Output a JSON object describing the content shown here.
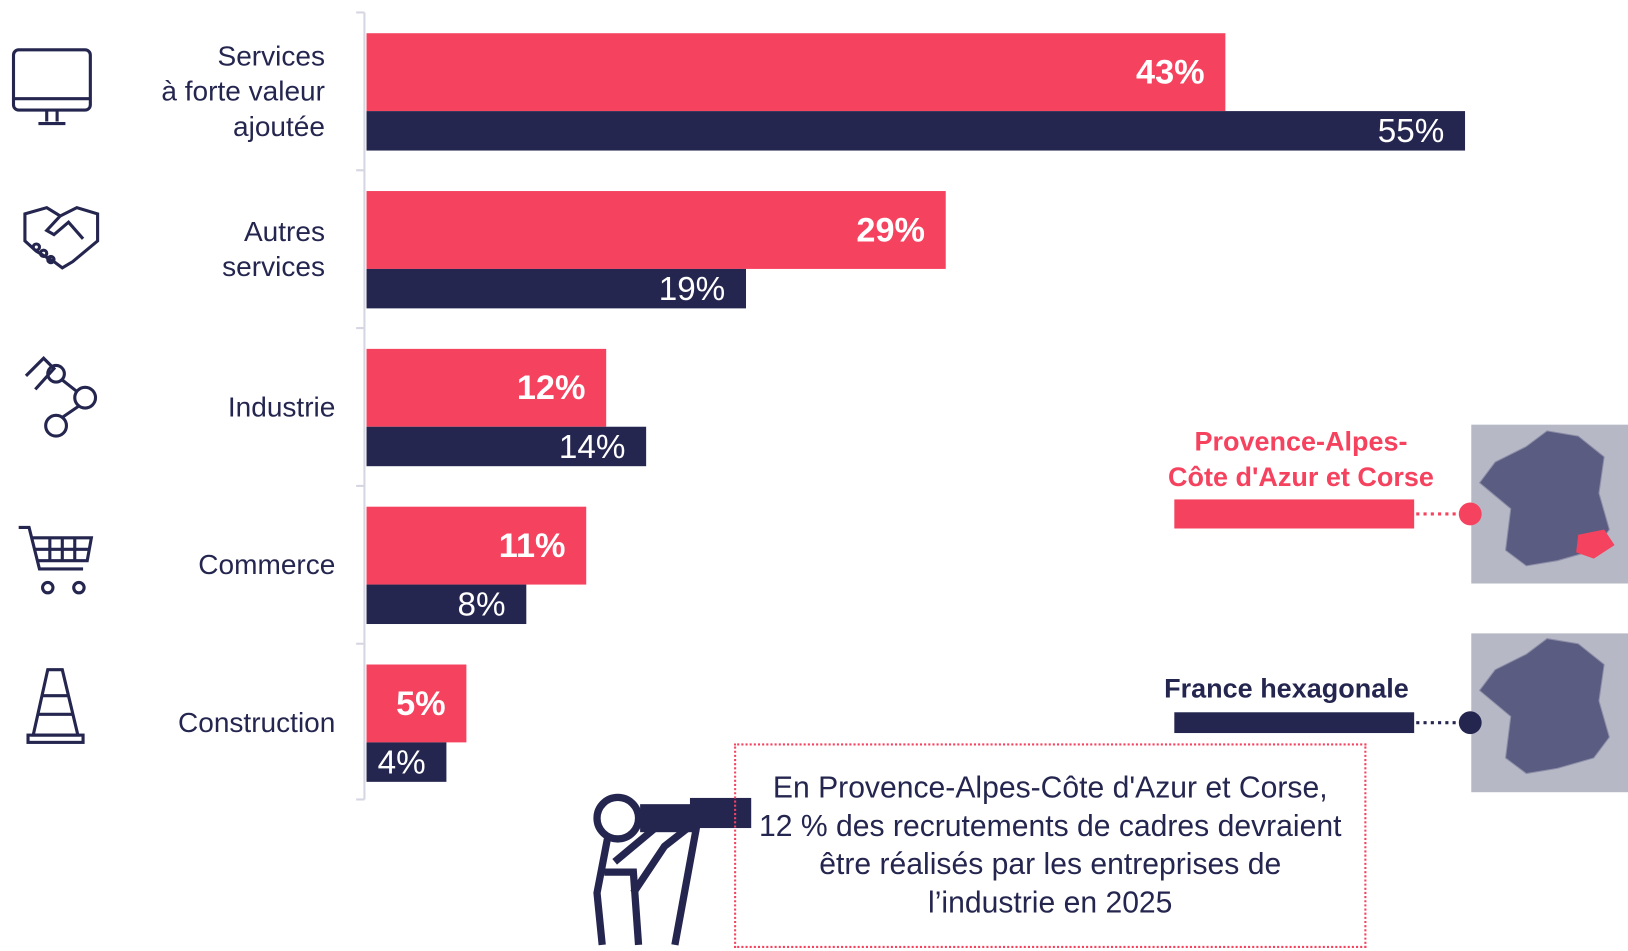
{
  "chart_data": {
    "type": "bar",
    "orientation": "horizontal",
    "categories": [
      "Services\nà forte valeur\najoutée",
      "Autres\nservices",
      "Industrie",
      "Commerce",
      "Construction"
    ],
    "series": [
      {
        "name": "Provence-Alpes-Côte d'Azur et Corse",
        "color": "#f5425f",
        "values": [
          43,
          29,
          12,
          11,
          5
        ],
        "value_labels": [
          "43%",
          "29%",
          "12%",
          "11%",
          "5%"
        ]
      },
      {
        "name": "France hexagonale",
        "color": "#25264f",
        "values": [
          55,
          19,
          14,
          8,
          4
        ],
        "value_labels": [
          "55%",
          "19%",
          "14%",
          "8%",
          "4%"
        ]
      }
    ],
    "xlim": [
      0,
      55
    ],
    "annotation": "En Provence-Alpes-Côte d'Azur et Corse, 12 % des recrutements de cadres devraient être réalisés par les entreprises de l’industrie en 2025"
  }
}
